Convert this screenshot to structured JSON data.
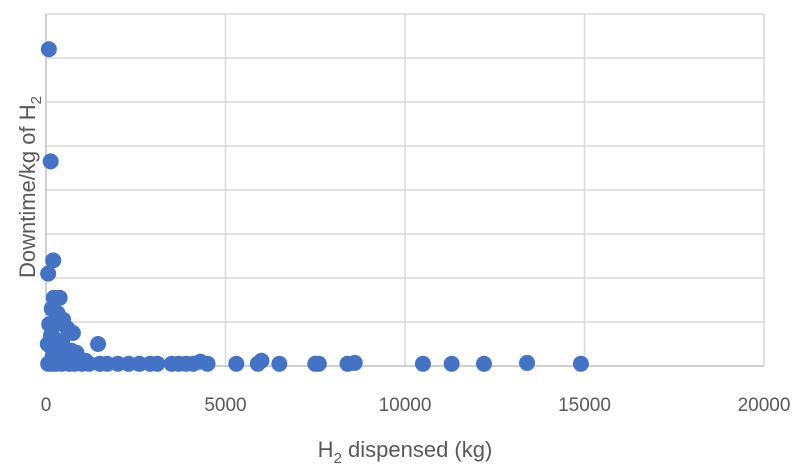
{
  "chart_data": {
    "type": "scatter",
    "xlabel": {
      "main": "H",
      "sub": "2",
      "rest": " dispensed (kg)"
    },
    "ylabel": {
      "main": "Downtime/kg of H",
      "sub": "2"
    },
    "xlim": [
      0,
      20000
    ],
    "xticks": [
      "0",
      "5000",
      "10000",
      "15000",
      "20000"
    ],
    "ylim": [
      0,
      8
    ],
    "y_tick_labels_shown": false,
    "grid": true,
    "marker_color": "#4472c4",
    "x": [
      80,
      130,
      200,
      60,
      220,
      380,
      160,
      320,
      480,
      90,
      200,
      600,
      750,
      140,
      280,
      450,
      50,
      120,
      380,
      520,
      700,
      850,
      230,
      410,
      620,
      180,
      330,
      500,
      900,
      1100,
      1450,
      60,
      150,
      270,
      440,
      650,
      800,
      1000,
      1200,
      1500,
      1700,
      2000,
      2300,
      2600,
      2900,
      3100,
      3500,
      3700,
      3900,
      4100,
      4300,
      4500,
      5300,
      5900,
      6000,
      6500,
      7500,
      7600,
      8400,
      8600,
      10500,
      11300,
      12200,
      13400,
      14900
    ],
    "y": [
      7.2,
      4.65,
      2.4,
      2.1,
      1.55,
      1.55,
      1.3,
      1.2,
      1.05,
      0.95,
      0.9,
      0.85,
      0.75,
      0.7,
      0.6,
      0.55,
      0.5,
      0.45,
      0.45,
      0.4,
      0.35,
      0.3,
      0.3,
      0.25,
      0.25,
      0.2,
      0.2,
      0.15,
      0.15,
      0.12,
      0.5,
      0.05,
      0.05,
      0.05,
      0.05,
      0.05,
      0.05,
      0.05,
      0.05,
      0.05,
      0.05,
      0.05,
      0.05,
      0.05,
      0.05,
      0.05,
      0.05,
      0.05,
      0.05,
      0.05,
      0.1,
      0.05,
      0.05,
      0.05,
      0.12,
      0.05,
      0.05,
      0.05,
      0.05,
      0.07,
      0.05,
      0.05,
      0.05,
      0.07,
      0.05
    ]
  }
}
